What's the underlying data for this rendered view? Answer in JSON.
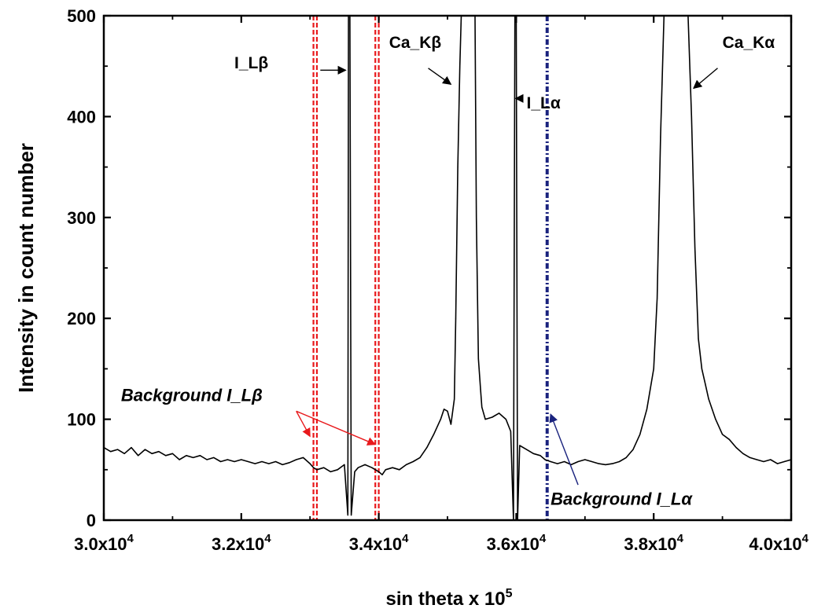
{
  "chart_data": {
    "type": "line",
    "xlabel": "sin theta x 10",
    "xlabel_sup": "5",
    "ylabel": "Intensity in count number",
    "xlim": [
      30000,
      40000
    ],
    "ylim": [
      0,
      500
    ],
    "x_ticks": [
      {
        "value": 30000,
        "base": "3.0x10",
        "exp": "4"
      },
      {
        "value": 32000,
        "base": "3.2x10",
        "exp": "4"
      },
      {
        "value": 34000,
        "base": "3.4x10",
        "exp": "4"
      },
      {
        "value": 36000,
        "base": "3.6x10",
        "exp": "4"
      },
      {
        "value": 38000,
        "base": "3.8x10",
        "exp": "4"
      },
      {
        "value": 40000,
        "base": "4.0x10",
        "exp": "4"
      }
    ],
    "y_ticks": [
      {
        "value": 0,
        "label": "0"
      },
      {
        "value": 100,
        "label": "100"
      },
      {
        "value": 200,
        "label": "200"
      },
      {
        "value": 300,
        "label": "300"
      },
      {
        "value": 400,
        "label": "400"
      },
      {
        "value": 500,
        "label": "500"
      }
    ],
    "grid": false,
    "legend": "none",
    "colors": {
      "spectrum": "#000000",
      "background_lbeta": "#e8191c",
      "background_lalpha": "#1a237e",
      "annotation_lalpha": "#1a237e"
    },
    "series": [
      {
        "values": [
          [
            30000,
            72
          ],
          [
            30100,
            68
          ],
          [
            30200,
            70
          ],
          [
            30300,
            66
          ],
          [
            30400,
            72
          ],
          [
            30500,
            64
          ],
          [
            30600,
            70
          ],
          [
            30700,
            66
          ],
          [
            30800,
            68
          ],
          [
            30900,
            64
          ],
          [
            31000,
            66
          ],
          [
            31100,
            60
          ],
          [
            31200,
            64
          ],
          [
            31300,
            62
          ],
          [
            31400,
            64
          ],
          [
            31500,
            60
          ],
          [
            31600,
            62
          ],
          [
            31700,
            58
          ],
          [
            31800,
            60
          ],
          [
            31900,
            58
          ],
          [
            32000,
            60
          ],
          [
            32100,
            58
          ],
          [
            32200,
            56
          ],
          [
            32300,
            58
          ],
          [
            32400,
            56
          ],
          [
            32500,
            58
          ],
          [
            32600,
            55
          ],
          [
            32700,
            57
          ],
          [
            32800,
            60
          ],
          [
            32900,
            62
          ],
          [
            33000,
            56
          ],
          [
            33050,
            52
          ],
          [
            33100,
            50
          ],
          [
            33200,
            52
          ],
          [
            33300,
            48
          ],
          [
            33400,
            50
          ],
          [
            33500,
            55
          ],
          [
            33550,
            5
          ],
          [
            33560,
            500
          ],
          [
            33580,
            500
          ],
          [
            33600,
            5
          ],
          [
            33650,
            48
          ],
          [
            33700,
            52
          ],
          [
            33800,
            55
          ],
          [
            33900,
            52
          ],
          [
            34000,
            48
          ],
          [
            34050,
            45
          ],
          [
            34100,
            50
          ],
          [
            34200,
            52
          ],
          [
            34300,
            50
          ],
          [
            34400,
            55
          ],
          [
            34500,
            58
          ],
          [
            34600,
            62
          ],
          [
            34700,
            72
          ],
          [
            34800,
            85
          ],
          [
            34900,
            100
          ],
          [
            34950,
            110
          ],
          [
            35000,
            108
          ],
          [
            35050,
            95
          ],
          [
            35100,
            120
          ],
          [
            35120,
            200
          ],
          [
            35150,
            350
          ],
          [
            35180,
            450
          ],
          [
            35200,
            500
          ],
          [
            35400,
            500
          ],
          [
            35420,
            300
          ],
          [
            35450,
            160
          ],
          [
            35480,
            130
          ],
          [
            35500,
            112
          ],
          [
            35550,
            100
          ],
          [
            35650,
            102
          ],
          [
            35750,
            106
          ],
          [
            35850,
            100
          ],
          [
            35920,
            88
          ],
          [
            35960,
            0
          ],
          [
            35980,
            500
          ],
          [
            36000,
            500
          ],
          [
            36020,
            0
          ],
          [
            36050,
            74
          ],
          [
            36150,
            70
          ],
          [
            36250,
            66
          ],
          [
            36350,
            64
          ],
          [
            36420,
            60
          ],
          [
            36500,
            58
          ],
          [
            36600,
            56
          ],
          [
            36700,
            58
          ],
          [
            36800,
            55
          ],
          [
            36900,
            58
          ],
          [
            37000,
            60
          ],
          [
            37100,
            58
          ],
          [
            37200,
            56
          ],
          [
            37300,
            55
          ],
          [
            37400,
            56
          ],
          [
            37500,
            58
          ],
          [
            37600,
            62
          ],
          [
            37700,
            70
          ],
          [
            37800,
            85
          ],
          [
            37900,
            110
          ],
          [
            38000,
            150
          ],
          [
            38050,
            220
          ],
          [
            38100,
            380
          ],
          [
            38150,
            500
          ],
          [
            38500,
            500
          ],
          [
            38550,
            400
          ],
          [
            38600,
            270
          ],
          [
            38650,
            180
          ],
          [
            38700,
            150
          ],
          [
            38750,
            135
          ],
          [
            38800,
            120
          ],
          [
            38900,
            100
          ],
          [
            39000,
            85
          ],
          [
            39100,
            80
          ],
          [
            39200,
            72
          ],
          [
            39300,
            66
          ],
          [
            39400,
            62
          ],
          [
            39500,
            60
          ],
          [
            39600,
            58
          ],
          [
            39700,
            60
          ],
          [
            39800,
            56
          ],
          [
            39900,
            58
          ],
          [
            40000,
            60
          ]
        ]
      }
    ],
    "background_lines": [
      {
        "x": 33050,
        "color": "#e8191c",
        "style": "dashed"
      },
      {
        "x": 33100,
        "color": "#e8191c",
        "style": "dashed"
      },
      {
        "x": 33950,
        "color": "#e8191c",
        "style": "dashed"
      },
      {
        "x": 34000,
        "color": "#e8191c",
        "style": "dashed"
      },
      {
        "x": 36440,
        "color": "#1a237e",
        "style": "dashdot"
      },
      {
        "x": 36460,
        "color": "#1a237e",
        "style": "dashdot"
      }
    ],
    "annotations": [
      {
        "id": "lbeta",
        "label": "I_L",
        "greek": "β",
        "italic": false,
        "tx": 31900,
        "ty": 448,
        "arrow_from": [
          33150,
          446
        ],
        "arrow_to": [
          33520,
          446
        ],
        "color": "#000000"
      },
      {
        "id": "cakbeta",
        "label": "Ca_K",
        "greek": "β",
        "italic": false,
        "tx": 34150,
        "ty": 468,
        "arrow_from": [
          34720,
          448
        ],
        "arrow_to": [
          35050,
          432
        ],
        "color": "#000000"
      },
      {
        "id": "lalpha",
        "label": "I_L",
        "greek": "α",
        "italic": false,
        "tx": 36150,
        "ty": 408,
        "arrow_from": [
          36080,
          418
        ],
        "arrow_to": [
          35990,
          418
        ],
        "color": "#000000"
      },
      {
        "id": "cakalpha",
        "label": "Ca_K",
        "greek": "α",
        "italic": false,
        "tx": 39000,
        "ty": 468,
        "arrow_from": [
          38930,
          448
        ],
        "arrow_to": [
          38580,
          428
        ],
        "color": "#000000"
      },
      {
        "id": "bg-lbeta",
        "label": "Background I_L",
        "greek": "β",
        "italic": true,
        "tx": 30250,
        "ty": 118,
        "color": "#000000"
      },
      {
        "id": "bg-lalpha",
        "label": "Background I_L",
        "greek": "α",
        "italic": true,
        "tx": 36500,
        "ty": 15,
        "color": "#000000"
      }
    ],
    "annotation_arrows": [
      {
        "from": [
          32800,
          108
        ],
        "to": [
          33000,
          83
        ],
        "color": "#e8191c"
      },
      {
        "from": [
          32800,
          108
        ],
        "to": [
          33950,
          75
        ],
        "color": "#e8191c"
      },
      {
        "from": [
          36900,
          35
        ],
        "to": [
          36500,
          105
        ],
        "color": "#1a237e"
      }
    ]
  }
}
